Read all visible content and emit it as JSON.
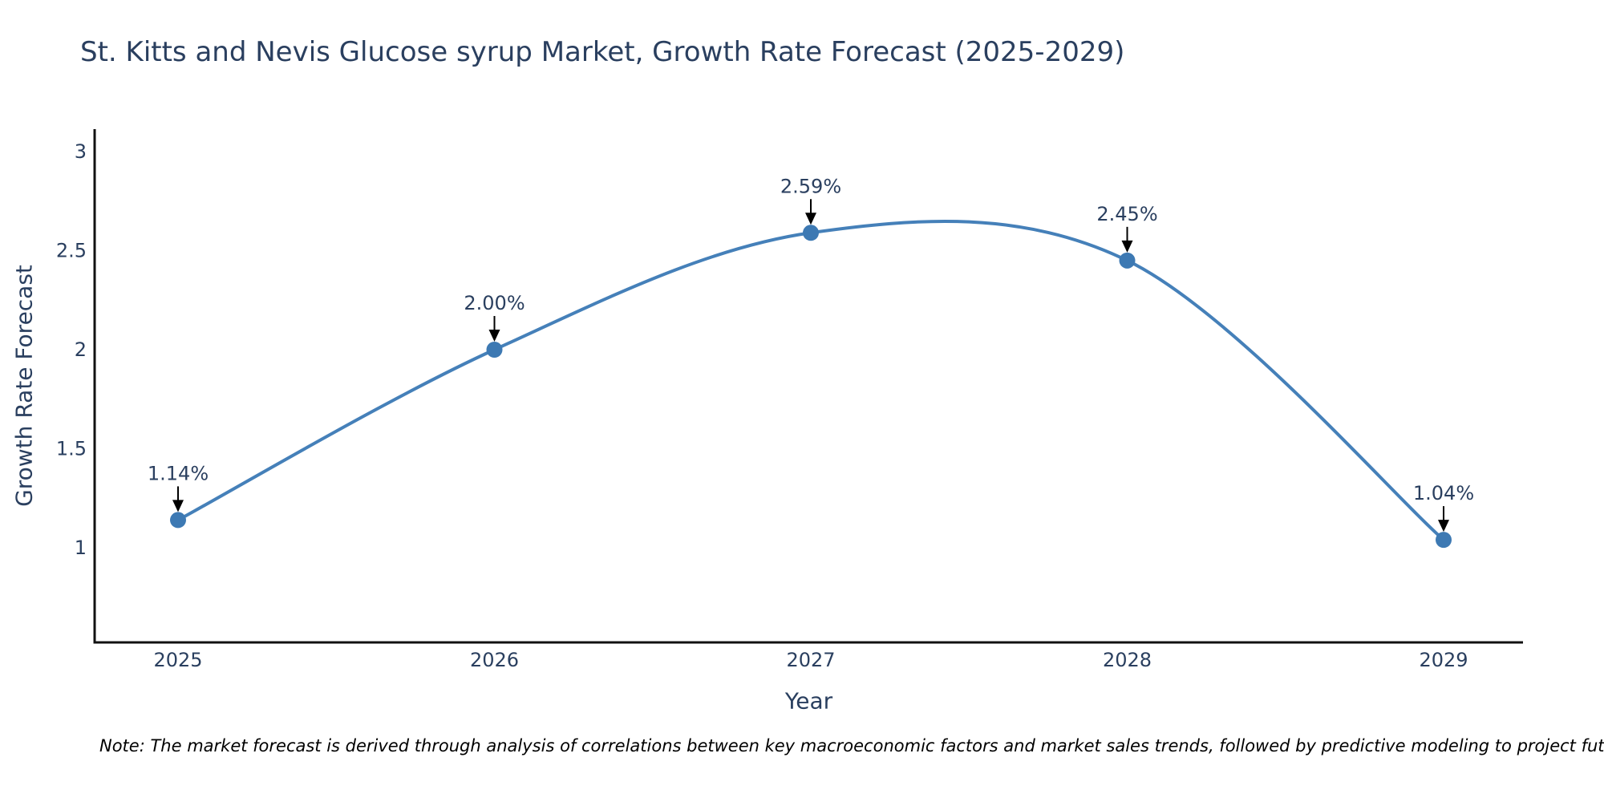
{
  "chart_data": {
    "type": "line",
    "title": "St. Kitts and Nevis Glucose syrup Market, Growth Rate Forecast (2025-2029)",
    "categories": [
      "2025",
      "2026",
      "2027",
      "2028",
      "2029"
    ],
    "x": [
      2025,
      2026,
      2027,
      2028,
      2029
    ],
    "values": [
      1.14,
      2.0,
      2.59,
      2.45,
      1.04
    ],
    "point_labels": [
      "1.14%",
      "2.00%",
      "2.59%",
      "2.45%",
      "1.04%"
    ],
    "xlabel": "Year",
    "ylabel": "Growth Rate Forecast",
    "y_ticks": [
      1,
      1.5,
      2,
      2.5,
      3
    ],
    "y_tick_labels": [
      "1",
      "1.5",
      "2",
      "2.5",
      "3"
    ],
    "ylim": [
      0.53,
      3.11
    ],
    "line_shape": "spline",
    "grid": false,
    "legend_position": "none",
    "colors": {
      "line": "#4580b9",
      "marker": "#3d79b3",
      "text": "#2a3f5f",
      "axis": "#111111",
      "arrow": "#000000"
    }
  },
  "note": {
    "text": "Note: The market forecast is derived through analysis of correlations between key macroeconomic factors and market sales trends, followed by predictive modeling to project future sales"
  }
}
